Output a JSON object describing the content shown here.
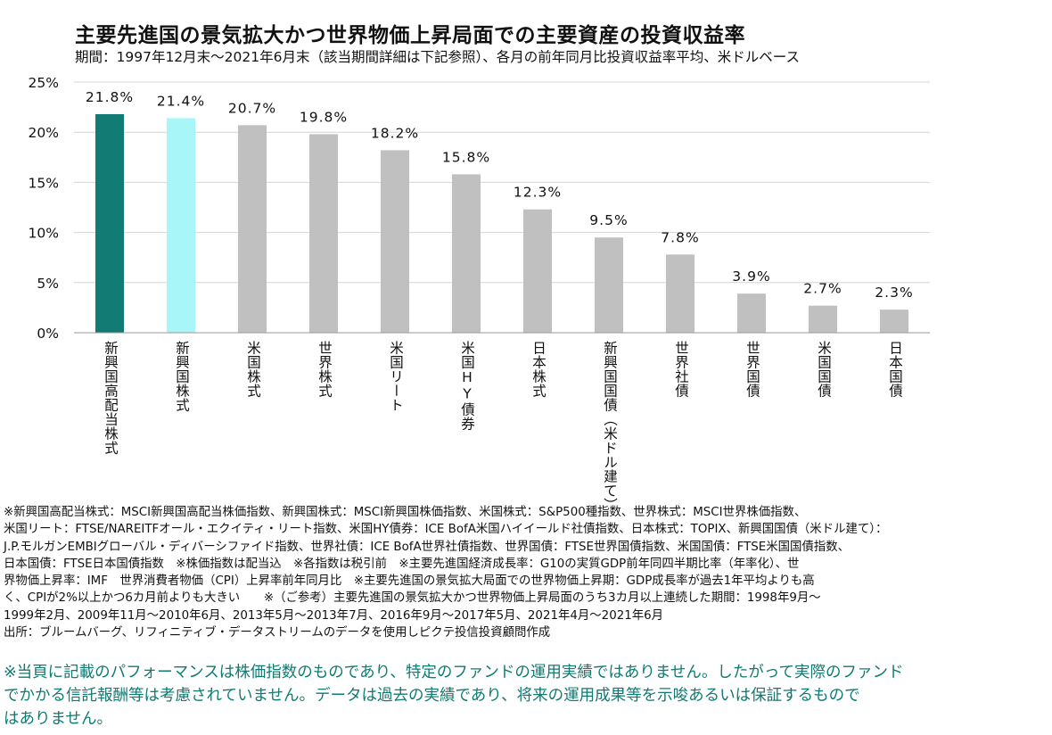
{
  "title": "主要先進国の景気拡大かつ世界物価上昇局面での主要資産の投資収益率",
  "subtitle": "期間：1997年12月末～2021年6月末（該当期間詳細は下記参照）、各月の前年同月比投資収益率平均、米ドルベース",
  "colors": {
    "highlight1": "#127b73",
    "highlight2": "#a9f6f8",
    "default": "#c0c0c0",
    "grid": "#d4d4d4",
    "axis": "#9a9a9a",
    "disclaimer": "#0f7b72"
  },
  "chart_data": {
    "type": "bar",
    "categories": [
      "新興国高配当株式",
      "新興国株式",
      "米国株式",
      "世界株式",
      "米国リート",
      "米国HY債券",
      "日本株式",
      "新興国国債（米ドル建て）",
      "世界社債",
      "世界国債",
      "米国国債",
      "日本国債"
    ],
    "values": [
      21.8,
      21.4,
      20.7,
      19.8,
      18.2,
      15.8,
      12.3,
      9.5,
      7.8,
      3.9,
      2.7,
      2.3
    ],
    "data_labels": [
      "21.8%",
      "21.4%",
      "20.7%",
      "19.8%",
      "18.2%",
      "15.8%",
      "12.3%",
      "9.5%",
      "7.8%",
      "3.9%",
      "2.7%",
      "2.3%"
    ],
    "bar_colors": [
      "#127b73",
      "#a9f6f8",
      "#c0c0c0",
      "#c0c0c0",
      "#c0c0c0",
      "#c0c0c0",
      "#c0c0c0",
      "#c0c0c0",
      "#c0c0c0",
      "#c0c0c0",
      "#c0c0c0",
      "#c0c0c0"
    ],
    "yticks": [
      "0%",
      "5%",
      "10%",
      "15%",
      "20%",
      "25%"
    ],
    "ytick_values": [
      0,
      5,
      10,
      15,
      20,
      25
    ],
    "ylim": [
      0,
      25
    ],
    "grid": true,
    "legend": "none",
    "xlabel": "",
    "ylabel": ""
  },
  "notes": [
    "※新興国高配当株式：MSCI新興国高配当株価指数、新興国株式：MSCI新興国株価指数、米国株式：S&P500種指数、世界株式：MSCI世界株価指数、",
    "米国リート：FTSE/NAREITFオール・エクイティ・リート指数、米国HY債券：ICE BofA米国ハイイールド社債指数、日本株式：TOPIX、新興国国債（米ドル建て）：",
    "J.P.モルガンEMBIグローバル・ディバーシファイド指数、世界社債：ICE BofA世界社債指数、世界国債：FTSE世界国債指数、米国国債：FTSE米国国債指数、",
    "日本国債：FTSE日本国債指数　※株価指数は配当込　※各指数は税引前　※主要先進国経済成長率：G10の実質GDP前年同四半期比率（年率化）、世",
    "界物価上昇率：IMF　世界消費者物価（CPI）上昇率前年同月比　※主要先進国の景気拡大局面での世界物価上昇期：GDP成長率が過去1年平均よりも高",
    "く、CPIが2%以上かつ6カ月前よりも大きい　　※（ご参考）主要先進国の景気拡大かつ世界物価上昇局面のうち3カ月以上連続した期間：1998年9月～",
    "1999年2月、2009年11月～2010年6月、2013年5月～2013年7月、2016年9月～2017年5月、2021年4月～2021年6月",
    "出所：ブルームバーグ、リフィニティブ・データストリームのデータを使用しピクテ投信投資顧問作成"
  ],
  "disclaimer": [
    "※当頁に記載のパフォーマンスは株価指数のものであり、特定のファンドの運用実績ではありません。したがって実際のファンド",
    "でかかる信託報酬等は考慮されていません。データは過去の実績であり、将来の運用成果等を示唆あるいは保証するもので",
    "はありません。"
  ]
}
